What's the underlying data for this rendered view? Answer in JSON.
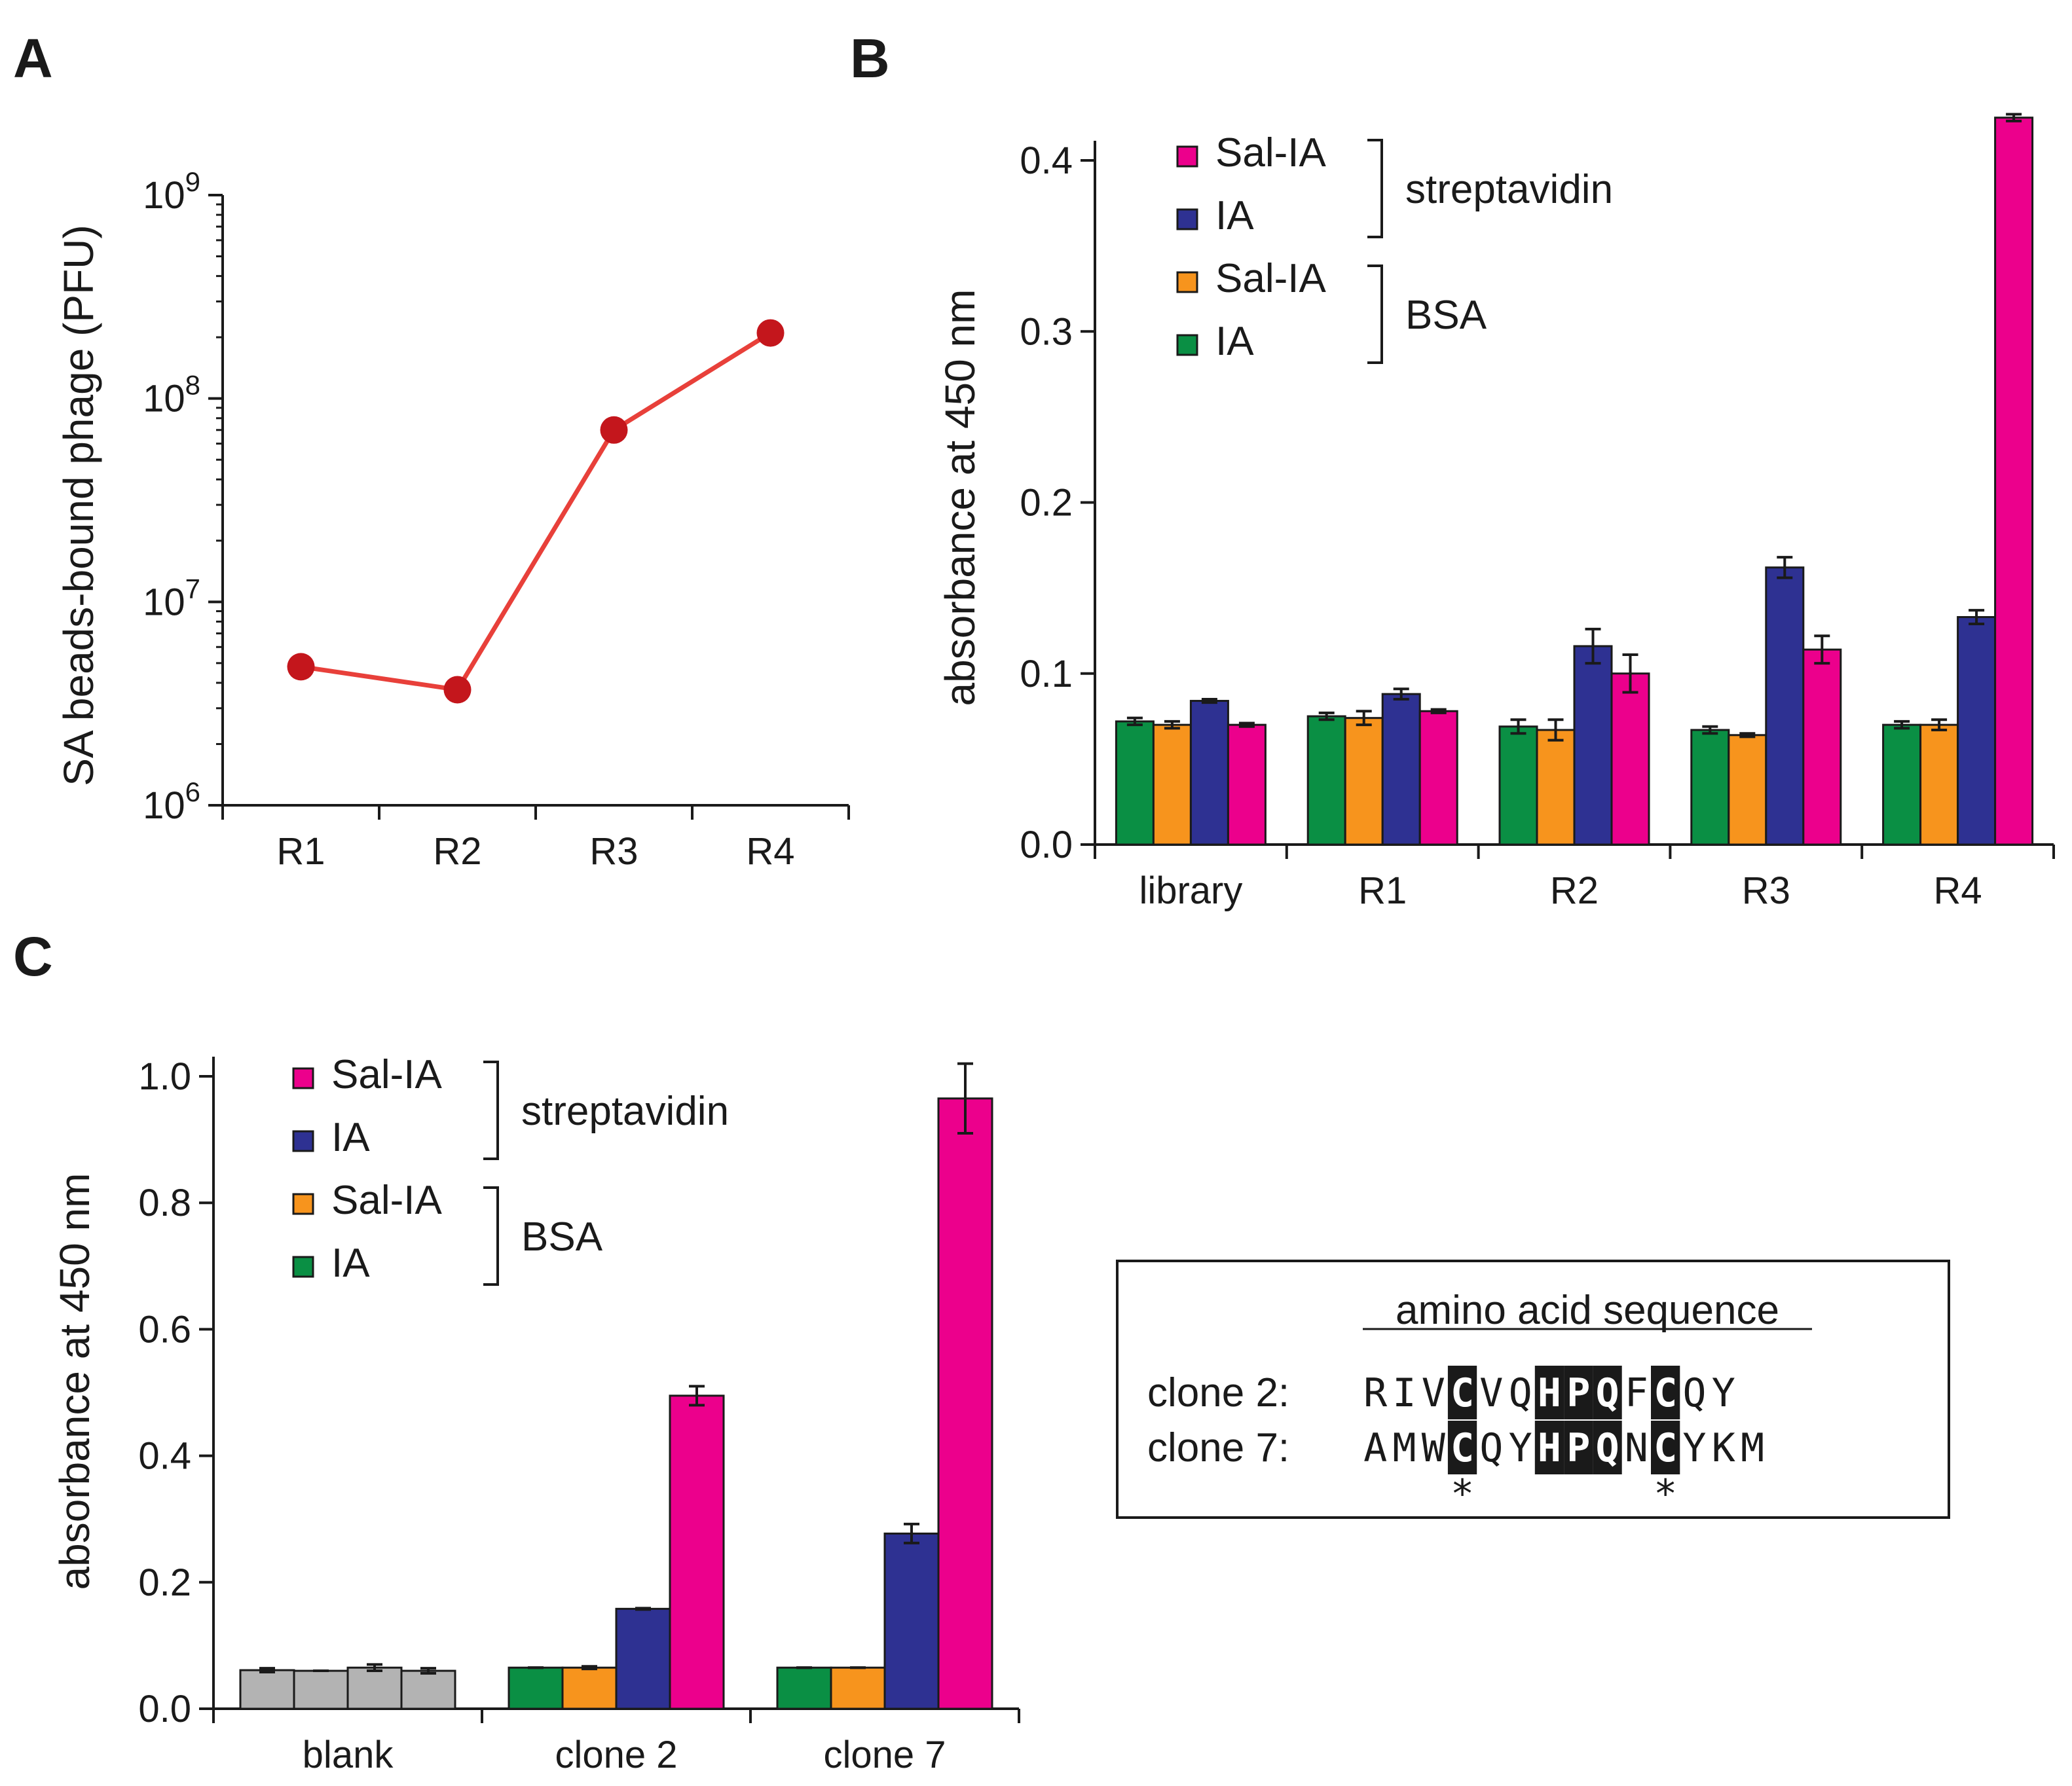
{
  "chart_data": [
    {
      "panel": "A",
      "type": "line",
      "title": "",
      "xlabel": "",
      "ylabel": "SA beads-bound phage (PFU)",
      "yscale": "log",
      "ylim": [
        1000000,
        1000000000
      ],
      "yticks": [
        {
          "value": 1000000,
          "base": "10",
          "exp": "6"
        },
        {
          "value": 10000000,
          "base": "10",
          "exp": "7"
        },
        {
          "value": 100000000,
          "base": "10",
          "exp": "8"
        },
        {
          "value": 1000000000,
          "base": "10",
          "exp": "9"
        }
      ],
      "categories": [
        "R1",
        "R2",
        "R3",
        "R4"
      ],
      "series": [
        {
          "name": "SA beads-bound phage",
          "values": [
            4800000,
            3700000,
            70000000,
            210000000
          ],
          "color": "#e8403a",
          "marker_color": "#c4161c"
        }
      ]
    },
    {
      "panel": "B",
      "type": "bar",
      "title": "",
      "xlabel": "",
      "ylabel": "absorbance at 450 nm",
      "ylim": [
        0,
        0.4
      ],
      "yticks": [
        "0.0",
        "0.1",
        "0.2",
        "0.3",
        "0.4"
      ],
      "categories": [
        "library",
        "R1",
        "R2",
        "R3",
        "R4"
      ],
      "series": [
        {
          "name": "IA",
          "target": "BSA",
          "color": "#0a8f44",
          "values": [
            0.072,
            0.075,
            0.069,
            0.067,
            0.07
          ],
          "errors": [
            0.002,
            0.002,
            0.004,
            0.002,
            0.002
          ]
        },
        {
          "name": "Sal-IA",
          "target": "BSA",
          "color": "#f7941d",
          "values": [
            0.07,
            0.074,
            0.067,
            0.064,
            0.07
          ],
          "errors": [
            0.002,
            0.004,
            0.006,
            0.001,
            0.003
          ]
        },
        {
          "name": "IA",
          "target": "streptavidin",
          "color": "#2e3192",
          "values": [
            0.084,
            0.088,
            0.116,
            0.162,
            0.133
          ],
          "errors": [
            0.001,
            0.003,
            0.01,
            0.006,
            0.004
          ]
        },
        {
          "name": "Sal-IA",
          "target": "streptavidin",
          "color": "#ec008c",
          "values": [
            0.07,
            0.078,
            0.1,
            0.114,
            0.425
          ],
          "errors": [
            0.001,
            0.001,
            0.011,
            0.008,
            0.002
          ]
        }
      ]
    },
    {
      "panel": "C",
      "type": "bar",
      "title": "",
      "xlabel": "",
      "ylabel": "absorbance at 450 nm",
      "ylim": [
        0,
        1.0
      ],
      "yticks": [
        "0.0",
        "0.2",
        "0.4",
        "0.6",
        "0.8",
        "1.0"
      ],
      "categories": [
        "blank",
        "clone 2",
        "clone 7"
      ],
      "blank_color": "#b3b3b3",
      "series": [
        {
          "name": "IA",
          "target": "BSA",
          "color": "#0a8f44",
          "values": [
            0.061,
            0.065,
            0.065
          ],
          "errors": [
            0.003,
            0.0,
            0.0
          ]
        },
        {
          "name": "Sal-IA",
          "target": "BSA",
          "color": "#f7941d",
          "values": [
            0.06,
            0.065,
            0.065
          ],
          "errors": [
            0.0,
            0.002,
            0.0
          ]
        },
        {
          "name": "IA",
          "target": "streptavidin",
          "color": "#2e3192",
          "values": [
            0.065,
            0.158,
            0.277
          ],
          "errors": [
            0.005,
            0.001,
            0.015
          ]
        },
        {
          "name": "Sal-IA",
          "target": "streptavidin",
          "color": "#ec008c",
          "values": [
            0.06,
            0.495,
            0.965
          ],
          "errors": [
            0.004,
            0.015,
            0.055
          ]
        }
      ]
    }
  ],
  "panels": {
    "A": {
      "letter": "A"
    },
    "B": {
      "letter": "B"
    },
    "C": {
      "letter": "C"
    }
  },
  "legend": {
    "streptavidin_label": "streptavidin",
    "bsa_label": "BSA",
    "entries": [
      {
        "label": "Sal-IA",
        "color": "#ec008c"
      },
      {
        "label": "IA",
        "color": "#2e3192"
      },
      {
        "label": "Sal-IA",
        "color": "#f7941d"
      },
      {
        "label": "IA",
        "color": "#0a8f44"
      }
    ]
  },
  "sequence_box": {
    "title": "amino acid sequence",
    "clones": [
      {
        "label": "clone 2:",
        "residues": [
          "R",
          "I",
          "V",
          "C",
          "V",
          "Q",
          "H",
          "P",
          "Q",
          "F",
          "C",
          "Q",
          "Y"
        ]
      },
      {
        "label": "clone 7:",
        "residues": [
          "A",
          "M",
          "W",
          "C",
          "Q",
          "Y",
          "H",
          "P",
          "Q",
          "N",
          "C",
          "Y",
          "K",
          "M"
        ]
      }
    ],
    "highlight_positions": [
      3,
      6,
      7,
      8,
      10
    ],
    "marker": "*",
    "marker_positions": [
      3,
      10
    ]
  }
}
